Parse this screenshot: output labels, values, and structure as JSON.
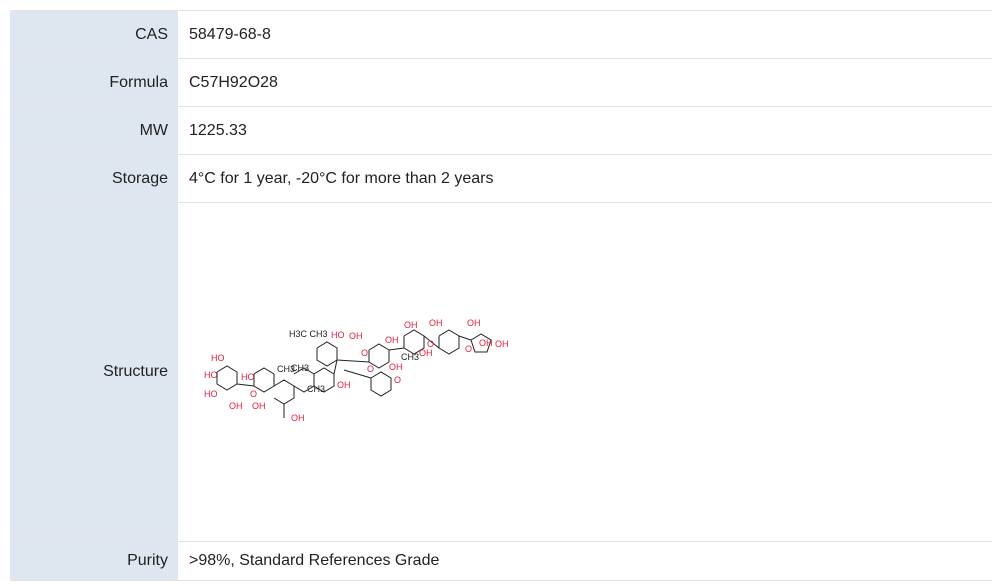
{
  "table": {
    "rows": [
      [
        "CAS",
        "58479-68-8"
      ],
      [
        "Formula",
        "C57H92O28"
      ],
      [
        "MW",
        "1225.33"
      ],
      [
        "Storage",
        "4°C for 1 year, -20°C for more than 2 years"
      ],
      [
        "Structure"
      ],
      [
        "Purity",
        ">98%, Standard References Grade"
      ]
    ]
  },
  "structure": {
    "labels": [
      "HO",
      "HO",
      "HO",
      "OH",
      "HO",
      "O",
      "OH",
      "OH",
      "CH3",
      "CH3",
      "CH3",
      "H3C CH3",
      "HO",
      "OH",
      "O",
      "OH",
      "OH",
      "O",
      "OH",
      "O",
      "CH3",
      "OH",
      "O",
      "OH",
      "OH",
      "OH",
      "O",
      "OH",
      "OH"
    ]
  }
}
